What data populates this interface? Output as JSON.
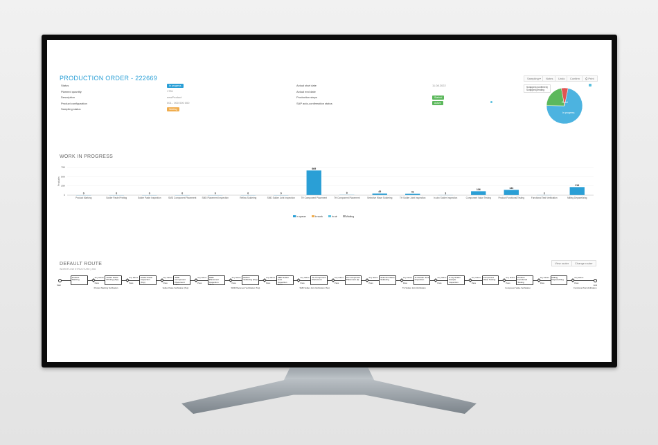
{
  "order": {
    "title": "PRODUCTION ORDER - 222669",
    "left_fields": [
      {
        "label": "Status",
        "value": "In progress",
        "badge": "blue"
      },
      {
        "label": "Planned quantity",
        "value": "1751",
        "badge": ""
      },
      {
        "label": "Description",
        "value": "newProduct",
        "badge": ""
      },
      {
        "label": "Product configuration",
        "value": "001 - 000 000 000",
        "badge": ""
      },
      {
        "label": "Sampling status",
        "value": "Waiting",
        "badge": "orange"
      }
    ],
    "right_fields": [
      {
        "label": "Actual start date",
        "value": "11.08.2022",
        "badge": ""
      },
      {
        "label": "Actual end date",
        "value": "",
        "badge": ""
      },
      {
        "label": "Production steps",
        "value": "Started",
        "badge": "green"
      },
      {
        "label": "SAP auto-confirmation status",
        "value": "Active",
        "badge": "green"
      }
    ],
    "toolbar": {
      "sampling": "Sampling ▾",
      "notes": "Notes",
      "undo": "Undo",
      "confirm": "Confirm",
      "print": "Print"
    },
    "pie": {
      "legend": [
        "Scrapped (confirmed)",
        "Scrapped pending"
      ],
      "labels": {
        "good": "Good",
        "in_progress": "In progress"
      },
      "slices": [
        {
          "name": "In progress",
          "fraction": 0.72,
          "color": "#4cb3e0"
        },
        {
          "name": "Good",
          "fraction": 0.22,
          "color": "#5cb85c"
        },
        {
          "name": "Scrapped",
          "fraction": 0.06,
          "color": "#e05454"
        }
      ]
    }
  },
  "wip": {
    "title": "WORK IN PROGRESS",
    "legend": [
      "In queue",
      "In work",
      "In air",
      "Waiting"
    ],
    "legend_colors": [
      "#2a9fd6",
      "#f0ad4e",
      "#5bc0de",
      "#aaaaaa"
    ]
  },
  "chart_data": {
    "type": "bar",
    "ylabel": "Products",
    "ylim": [
      0,
      750
    ],
    "yticks": [
      "750",
      "500",
      "250",
      "0"
    ],
    "categories": [
      "Product Marking",
      "Solder Paste Printing",
      "Solder Paste Inspection",
      "SMD Component Placement",
      "SMD Placement Inspection",
      "Reflow Soldering",
      "SMD Solder Joint Inspection",
      "TH Component Placement",
      "TH Component Placement",
      "Selective Wave Soldering",
      "TH Solder Joint Inspection",
      "In-circ Solder Inspection",
      "Component Value Testing",
      "Product Functional Testing",
      "Functional Test Verification",
      "Milling Depanelizing"
    ],
    "values": [
      0,
      0,
      0,
      0,
      0,
      0,
      0,
      669,
      9,
      45,
      41,
      3,
      106,
      144,
      3,
      219
    ],
    "value_labels": [
      "0",
      "0",
      "0",
      "0",
      "0",
      "0",
      "0",
      "669",
      "9",
      "45",
      "41",
      "3",
      "106",
      "144",
      "3",
      "219"
    ]
  },
  "route": {
    "title": "DEFAULT ROUTE",
    "subtitle": "WORKFLOW STRUCTURE | 256",
    "view_btn": "View router",
    "change_btn": "Change router",
    "start": "Start",
    "end": "End",
    "any_failure": "Any failure",
    "pass": "Pass",
    "steps": [
      "Product Marking",
      "Solder Paste Printing (Top)",
      "Solder Paste Inspection (Top)",
      "SMD Component Placement (Top)",
      "SMD Placement Inspection (Top)",
      "Reflow Soldering (Top)",
      "SMD Solder Joint Inspection (Top)",
      "TH Component Placement",
      "TH Component Placement (2)",
      "Selective Wave Soldering",
      "TH Solder Joint Inspection",
      "X-ray Solder Sample Inspection",
      "Component Value Testing",
      "Product Functional Testing",
      "Milling Depanelizing"
    ],
    "verifications": [
      "Product Marking Verification",
      "Solder Paste Verification (Top)",
      "SMD Placement Verification (Top)",
      "SMD Solder Joint Verification (Top)",
      "TH Solder Joint Verification",
      "Component Value Verification",
      "Functional Test Verification"
    ]
  }
}
